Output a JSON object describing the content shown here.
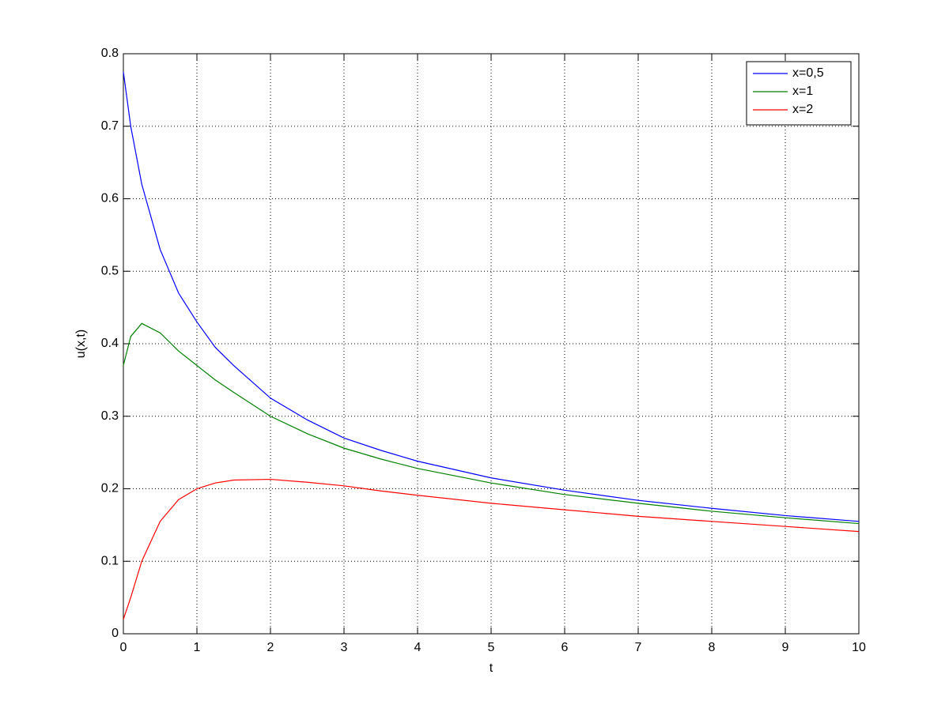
{
  "chart_data": {
    "type": "line",
    "xlabel": "t",
    "ylabel": "u(x,t)",
    "x": [
      0,
      0.1,
      0.25,
      0.5,
      0.75,
      1,
      1.25,
      1.5,
      2,
      2.5,
      3,
      3.5,
      4,
      5,
      6,
      7,
      8,
      9,
      10
    ],
    "series": [
      {
        "name": "x=0,5",
        "color": "#0000ff",
        "values": [
          0.775,
          0.7,
          0.62,
          0.53,
          0.47,
          0.43,
          0.395,
          0.37,
          0.325,
          0.295,
          0.27,
          0.253,
          0.238,
          0.215,
          0.198,
          0.184,
          0.173,
          0.163,
          0.155
        ]
      },
      {
        "name": "x=1",
        "color": "#008000",
        "values": [
          0.37,
          0.41,
          0.428,
          0.415,
          0.39,
          0.37,
          0.35,
          0.333,
          0.3,
          0.276,
          0.256,
          0.241,
          0.228,
          0.208,
          0.192,
          0.18,
          0.169,
          0.16,
          0.152
        ]
      },
      {
        "name": "x=2",
        "color": "#ff0000",
        "values": [
          0.02,
          0.05,
          0.1,
          0.155,
          0.185,
          0.2,
          0.208,
          0.212,
          0.213,
          0.209,
          0.204,
          0.197,
          0.191,
          0.18,
          0.171,
          0.162,
          0.155,
          0.148,
          0.141
        ]
      }
    ],
    "xlim": [
      0,
      10
    ],
    "xticks": [
      0,
      1,
      2,
      3,
      4,
      5,
      6,
      7,
      8,
      9,
      10
    ],
    "ylim": [
      0,
      0.8
    ],
    "yticks": [
      0,
      0.1,
      0.2,
      0.3,
      0.4,
      0.5,
      0.6,
      0.7,
      0.8
    ],
    "grid": true,
    "legend": "upper right"
  }
}
